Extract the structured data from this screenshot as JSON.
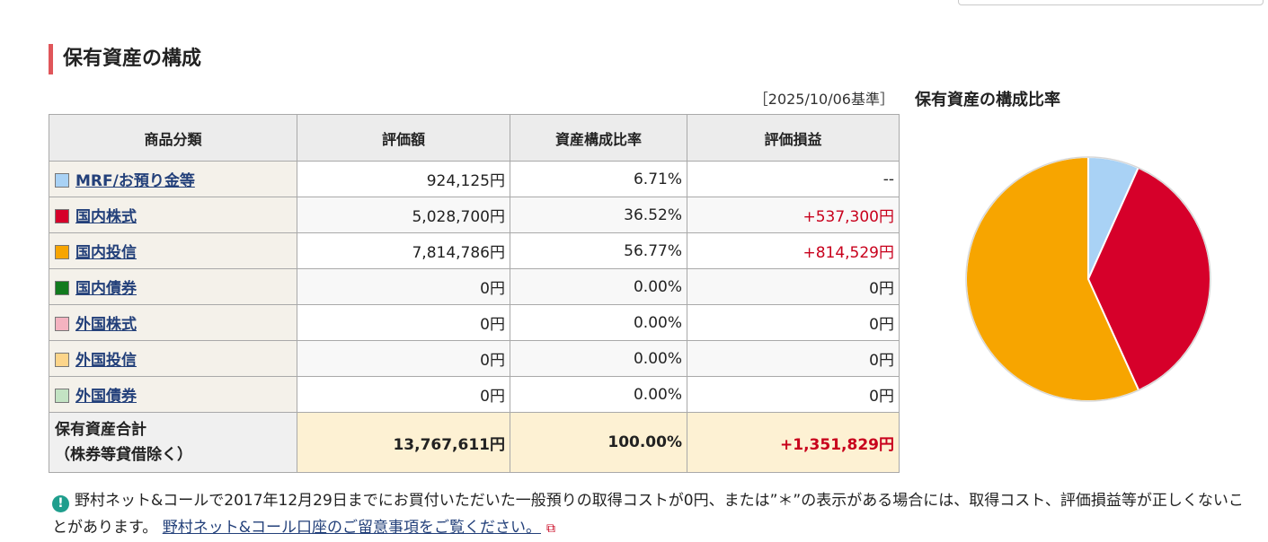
{
  "header": {
    "section_title": "保有資産の構成",
    "as_of": "［2025/10/06基準］",
    "chart_title": "保有資産の構成比率"
  },
  "table": {
    "columns": [
      "商品分類",
      "評価額",
      "資産構成比率",
      "評価損益"
    ],
    "rows": [
      {
        "label": "MRF/お預り金等",
        "color": "#a9d2f5",
        "value": "924,125円",
        "ratio": "6.71%",
        "gain": "--"
      },
      {
        "label": "国内株式",
        "color": "#d6002a",
        "value": "5,028,700円",
        "ratio": "36.52%",
        "gain": "+537,300円"
      },
      {
        "label": "国内投信",
        "color": "#f7a500",
        "value": "7,814,786円",
        "ratio": "56.77%",
        "gain": "+814,529円"
      },
      {
        "label": "国内債券",
        "color": "#127a1e",
        "value": "0円",
        "ratio": "0.00%",
        "gain": "0円"
      },
      {
        "label": "外国株式",
        "color": "#f4b3c0",
        "value": "0円",
        "ratio": "0.00%",
        "gain": "0円"
      },
      {
        "label": "外国投信",
        "color": "#fcd58a",
        "value": "0円",
        "ratio": "0.00%",
        "gain": "0円"
      },
      {
        "label": "外国債券",
        "color": "#c3e3c3",
        "value": "0円",
        "ratio": "0.00%",
        "gain": "0円"
      }
    ],
    "total": {
      "label_line1": "保有資産合計",
      "label_line2": "（株券等貸借除く）",
      "value": "13,767,611円",
      "ratio": "100.00%",
      "gain": "+1,351,829円"
    }
  },
  "chart_data": {
    "type": "pie",
    "categories": [
      "MRF/お預り金等",
      "国内株式",
      "国内投信",
      "国内債券",
      "外国株式",
      "外国投信",
      "外国債券"
    ],
    "values": [
      6.71,
      36.52,
      56.77,
      0,
      0,
      0,
      0
    ],
    "colors": [
      "#a9d2f5",
      "#d6002a",
      "#f7a500",
      "#127a1e",
      "#f4b3c0",
      "#fcd58a",
      "#c3e3c3"
    ]
  },
  "notice": {
    "icon": "info-icon",
    "text": "野村ネット&コールで2017年12月29日までにお買付いただいた一般預りの取得コストが0円、または”＊”の表示がある場合には、取得コスト、評価損益等が正しくないことがあります。",
    "link_text": "野村ネット&コール口座のご留意事項をご覧ください。",
    "link_icon": "external-link-icon"
  }
}
